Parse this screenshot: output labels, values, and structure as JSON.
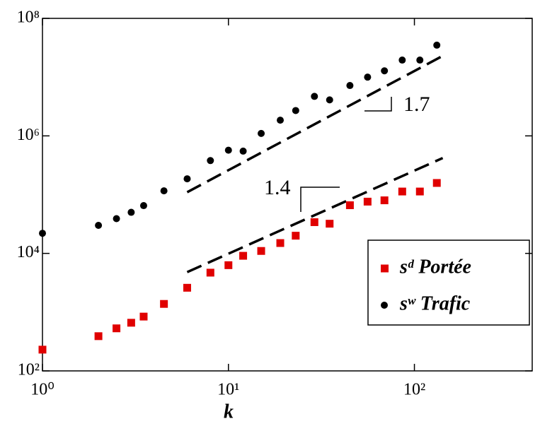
{
  "chart_data": {
    "type": "scatter",
    "x_label": "k",
    "log_x": true,
    "log_y": true,
    "xlim": [
      1,
      430
    ],
    "ylim": [
      100,
      100000000
    ],
    "xticks": [
      {
        "value": 1,
        "label": "10⁰"
      },
      {
        "value": 10,
        "label": "10¹"
      },
      {
        "value": 100,
        "label": "10²"
      }
    ],
    "yticks": [
      {
        "value": 100,
        "label": "10²"
      },
      {
        "value": 10000,
        "label": "10⁴"
      },
      {
        "value": 1000000,
        "label": "10⁶"
      },
      {
        "value": 100000000,
        "label": "10⁸"
      }
    ],
    "legend": "lower right",
    "series": [
      {
        "name": "sᵈ Portée",
        "color": "#e00000",
        "marker": "square",
        "x": [
          1,
          2,
          2.5,
          3,
          3.5,
          4.5,
          6,
          8,
          10,
          12,
          15,
          19,
          23,
          29,
          35,
          45,
          56,
          69,
          86,
          107,
          132
        ],
        "values": [
          230,
          390,
          530,
          660,
          840,
          1380,
          2600,
          4700,
          6300,
          9100,
          11000,
          15000,
          20000,
          34000,
          32000,
          66000,
          76000,
          80000,
          113000,
          113000,
          158000
        ]
      },
      {
        "name": "sʷ Trafic",
        "color": "#000000",
        "marker": "circle",
        "x": [
          1,
          2,
          2.5,
          3,
          3.5,
          4.5,
          6,
          8,
          10,
          12,
          15,
          19,
          23,
          29,
          35,
          45,
          56,
          69,
          86,
          107,
          132
        ],
        "values": [
          22000,
          30000,
          39000,
          50000,
          65000,
          116000,
          186000,
          380000,
          570000,
          550000,
          1100000,
          1850000,
          2700000,
          4700000,
          4100000,
          7200000,
          10000000,
          12800000,
          19500000,
          19500000,
          35000000
        ]
      }
    ],
    "fits": [
      {
        "x": [
          6,
          142
        ],
        "values": [
          110000,
          23000000
        ]
      },
      {
        "x": [
          6,
          142
        ],
        "values": [
          4800,
          420000
        ]
      }
    ],
    "annotations": [
      "1.7",
      "1.4"
    ]
  }
}
